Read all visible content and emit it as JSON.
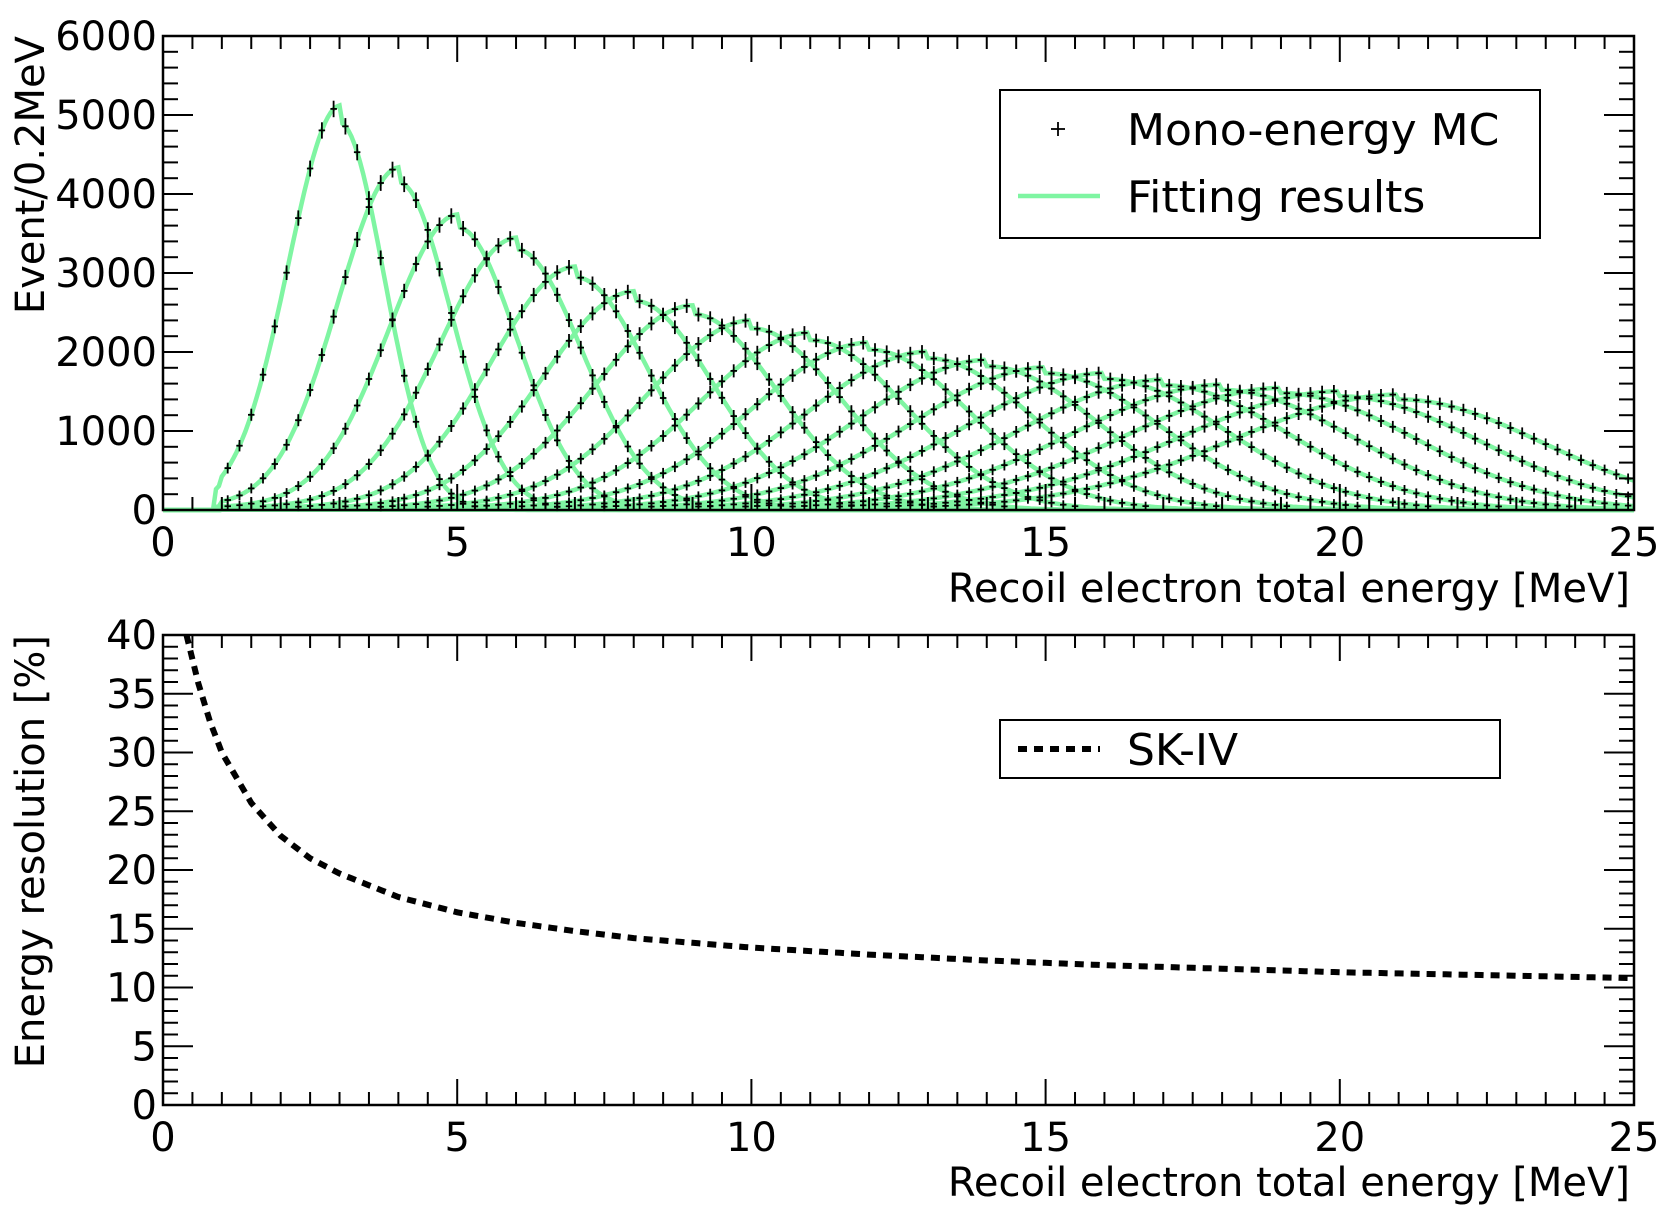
{
  "chart_data": [
    {
      "type": "line",
      "panel": "top",
      "xlabel": "Recoil electron total energy [MeV]",
      "ylabel": "Event/0.2MeV",
      "xlim": [
        0,
        25
      ],
      "ylim": [
        0,
        6000
      ],
      "x_ticks": [
        "0",
        "5",
        "10",
        "15",
        "20",
        "25"
      ],
      "y_ticks": [
        "0",
        "1000",
        "2000",
        "3000",
        "4000",
        "5000",
        "6000"
      ],
      "legend_position": "top-right",
      "legend": [
        {
          "label": "Mono-energy MC",
          "style": "markers",
          "color": "#000000"
        },
        {
          "label": "Fitting results",
          "style": "line",
          "color": "#7ff5a2"
        }
      ],
      "series_style": {
        "fit_color": "#7ff5a2",
        "mc_color": "#000000"
      },
      "peaks": [
        {
          "energy": 3,
          "height": 4900
        },
        {
          "energy": 4,
          "height": 4150
        },
        {
          "energy": 5,
          "height": 3580
        },
        {
          "energy": 6,
          "height": 3300
        },
        {
          "energy": 7,
          "height": 2950
        },
        {
          "energy": 8,
          "height": 2650
        },
        {
          "energy": 9,
          "height": 2480
        },
        {
          "energy": 10,
          "height": 2300
        },
        {
          "energy": 11,
          "height": 2150
        },
        {
          "energy": 12,
          "height": 2030
        },
        {
          "energy": 13,
          "height": 1920
        },
        {
          "energy": 14,
          "height": 1820
        },
        {
          "energy": 15,
          "height": 1730
        },
        {
          "energy": 16,
          "height": 1660
        },
        {
          "energy": 17,
          "height": 1580
        },
        {
          "energy": 18,
          "height": 1520
        },
        {
          "energy": 19,
          "height": 1480
        },
        {
          "energy": 20,
          "height": 1440
        },
        {
          "energy": 21,
          "height": 1400
        }
      ]
    },
    {
      "type": "line",
      "panel": "bottom",
      "xlabel": "Recoil electron total energy [MeV]",
      "ylabel": "Energy resolution [%]",
      "xlim": [
        0,
        25
      ],
      "ylim": [
        0,
        40
      ],
      "x_ticks": [
        "0",
        "5",
        "10",
        "15",
        "20",
        "25"
      ],
      "y_ticks": [
        "0",
        "5",
        "10",
        "15",
        "20",
        "25",
        "30",
        "35",
        "40"
      ],
      "legend_position": "top-right",
      "legend": [
        {
          "label": "SK-IV",
          "style": "dashed",
          "color": "#000000"
        }
      ],
      "series": [
        {
          "name": "SK-IV",
          "x": [
            0.4,
            0.6,
            0.8,
            1.0,
            1.5,
            2.0,
            2.5,
            3.0,
            4.0,
            5.0,
            6.0,
            7.0,
            8.0,
            9.0,
            10.0,
            12.0,
            14.0,
            16.0,
            18.0,
            20.0,
            22.0,
            25.0
          ],
          "y": [
            40.0,
            35.9,
            32.6,
            30.0,
            25.7,
            22.9,
            21.0,
            19.7,
            17.7,
            16.4,
            15.5,
            14.8,
            14.2,
            13.8,
            13.4,
            12.8,
            12.3,
            11.9,
            11.6,
            11.3,
            11.1,
            10.8
          ]
        }
      ]
    }
  ]
}
